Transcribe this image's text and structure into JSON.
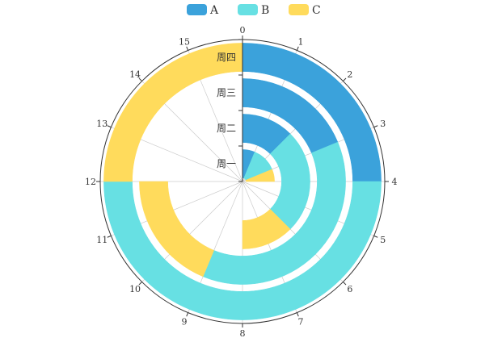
{
  "chart_data": {
    "type": "polar-stacked-bar",
    "angle_axis": {
      "min": 0,
      "max": 16,
      "ticks": [
        0,
        1,
        2,
        3,
        4,
        5,
        6,
        7,
        8,
        9,
        10,
        11,
        12,
        13,
        14,
        15
      ]
    },
    "categories": [
      "周一",
      "周二",
      "周三",
      "周四"
    ],
    "series": [
      {
        "name": "A",
        "color": "#3ba2db",
        "values": [
          1,
          2,
          3,
          4
        ]
      },
      {
        "name": "B",
        "color": "#67e0e3",
        "values": [
          2,
          4,
          6,
          8
        ]
      },
      {
        "name": "C",
        "color": "#ffdb5c",
        "values": [
          1,
          2,
          3,
          4
        ]
      }
    ],
    "legend": {
      "position": "top",
      "items": [
        "A",
        "B",
        "C"
      ]
    }
  }
}
